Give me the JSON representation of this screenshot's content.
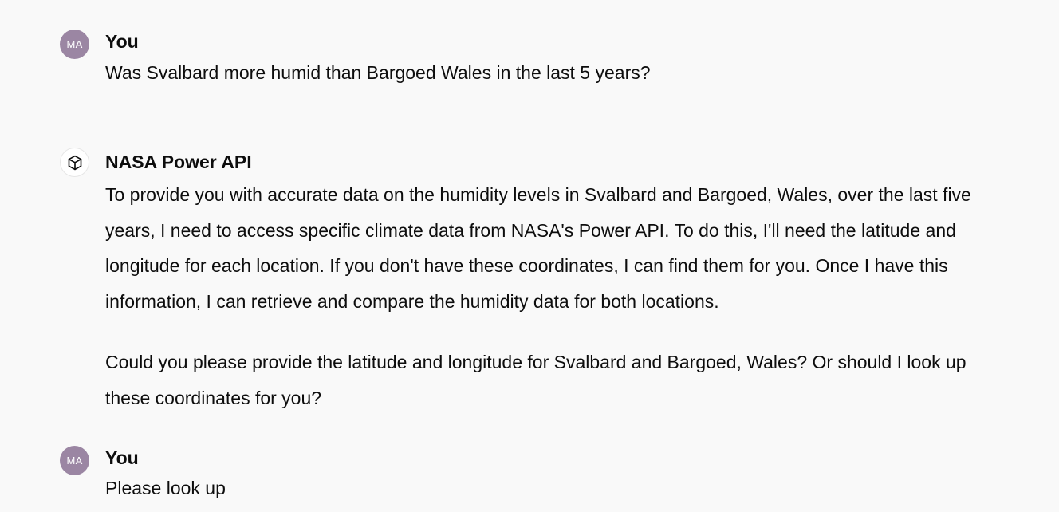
{
  "conversation": {
    "messages": [
      {
        "author": "You",
        "avatar_initials": "MA",
        "text": "Was Svalbard more humid than Bargoed Wales in the last 5 years?"
      },
      {
        "author": "NASA Power API",
        "avatar_icon": "cube-icon",
        "paragraphs": [
          "To provide you with accurate data on the humidity levels in Svalbard and Bargoed, Wales, over the last five years, I need to access specific climate data from NASA's Power API. To do this, I'll need the latitude and longitude for each location. If you don't have these coordinates, I can find them for you. Once I have this information, I can retrieve and compare the humidity data for both locations.",
          "Could you please provide the latitude and longitude for Svalbard and Bargoed, Wales? Or should I look up these coordinates for you?"
        ]
      },
      {
        "author": "You",
        "avatar_initials": "MA",
        "text": "Please look up"
      }
    ]
  },
  "colors": {
    "background": "#f9f9f9",
    "user_avatar": "#9b86a3",
    "text": "#0d0d0d"
  }
}
